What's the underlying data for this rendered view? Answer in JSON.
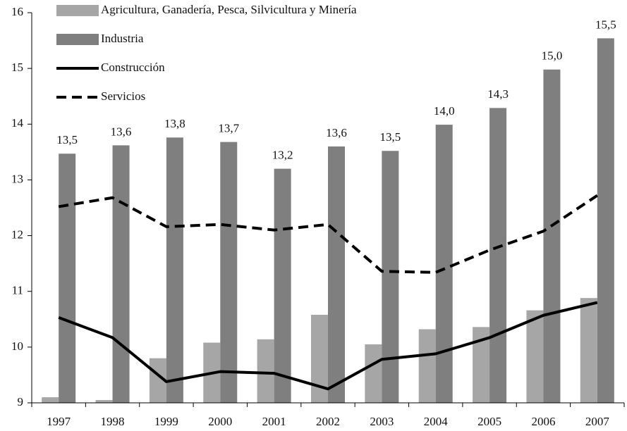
{
  "chart_data": {
    "type": "bar",
    "categories": [
      "1997",
      "1998",
      "1999",
      "2000",
      "2001",
      "2002",
      "2003",
      "2004",
      "2005",
      "2006",
      "2007"
    ],
    "series": [
      {
        "name": "Agricultura, Ganadería, Pesca, Silvicultura y Minería",
        "type": "bar",
        "color": "#a6a6a6",
        "values": [
          9.1,
          9.05,
          9.8,
          10.08,
          10.14,
          10.58,
          10.05,
          10.32,
          10.36,
          10.66,
          10.88
        ]
      },
      {
        "name": "Industria",
        "type": "bar",
        "color": "#7f7f7f",
        "values": [
          13.47,
          13.62,
          13.76,
          13.68,
          13.2,
          13.6,
          13.52,
          13.99,
          14.29,
          14.98,
          15.54
        ],
        "value_labels": [
          "13,5",
          "13,6",
          "13,8",
          "13,7",
          "13,2",
          "13,6",
          "13,5",
          "14,0",
          "14,3",
          "15,0",
          "15,5"
        ]
      },
      {
        "name": "Construcción",
        "type": "line",
        "style": "solid",
        "color": "#000000",
        "values": [
          10.53,
          10.17,
          9.38,
          9.56,
          9.53,
          9.25,
          9.78,
          9.88,
          10.17,
          10.57,
          10.8
        ]
      },
      {
        "name": "Servicios",
        "type": "line",
        "style": "dashed",
        "color": "#000000",
        "values": [
          12.52,
          12.68,
          12.16,
          12.2,
          12.1,
          12.2,
          11.36,
          11.34,
          11.74,
          12.08,
          12.72
        ]
      }
    ],
    "ylim": [
      9,
      16
    ],
    "yticks": [
      9,
      10,
      11,
      12,
      13,
      14,
      15,
      16
    ],
    "legend": "top-left"
  }
}
